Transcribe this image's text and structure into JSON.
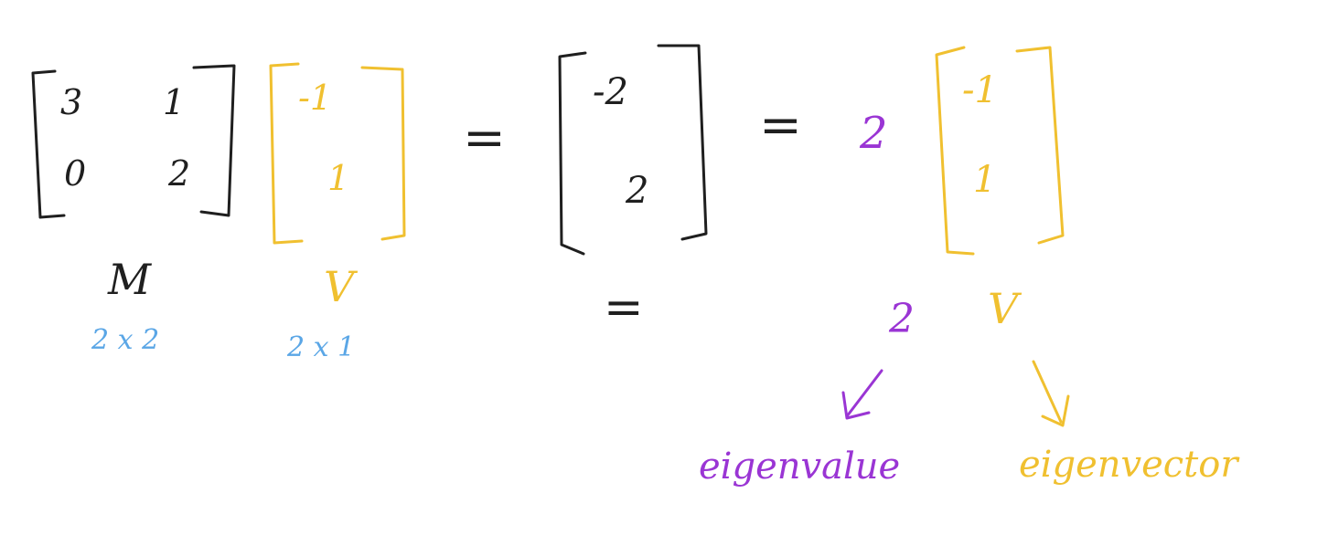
{
  "colors": {
    "ink_black": "#1f1f1f",
    "ink_gold": "#f0c030",
    "ink_purple": "#9a35d4",
    "ink_blue": "#5aa6e6",
    "background": "#ffffff"
  },
  "matrix_m": {
    "cells": [
      "3",
      "1",
      "0",
      "2"
    ],
    "label": "M",
    "dims": "2 x 2"
  },
  "vector_v": {
    "cells": [
      "-1",
      "1"
    ],
    "label": "V",
    "dims": "2 x 1"
  },
  "equals_1": "=",
  "product_vector": {
    "cells": [
      "-2",
      "2"
    ]
  },
  "equals_2": "=",
  "equals_below_product": "=",
  "scalar": "2",
  "scaled_vector": {
    "cells": [
      "-1",
      "1"
    ]
  },
  "eigenvalue_symbol": "2",
  "eigenvector_symbol": "V",
  "eigenvalue_word": "eigenvalue",
  "eigenvector_word": "eigenvector"
}
